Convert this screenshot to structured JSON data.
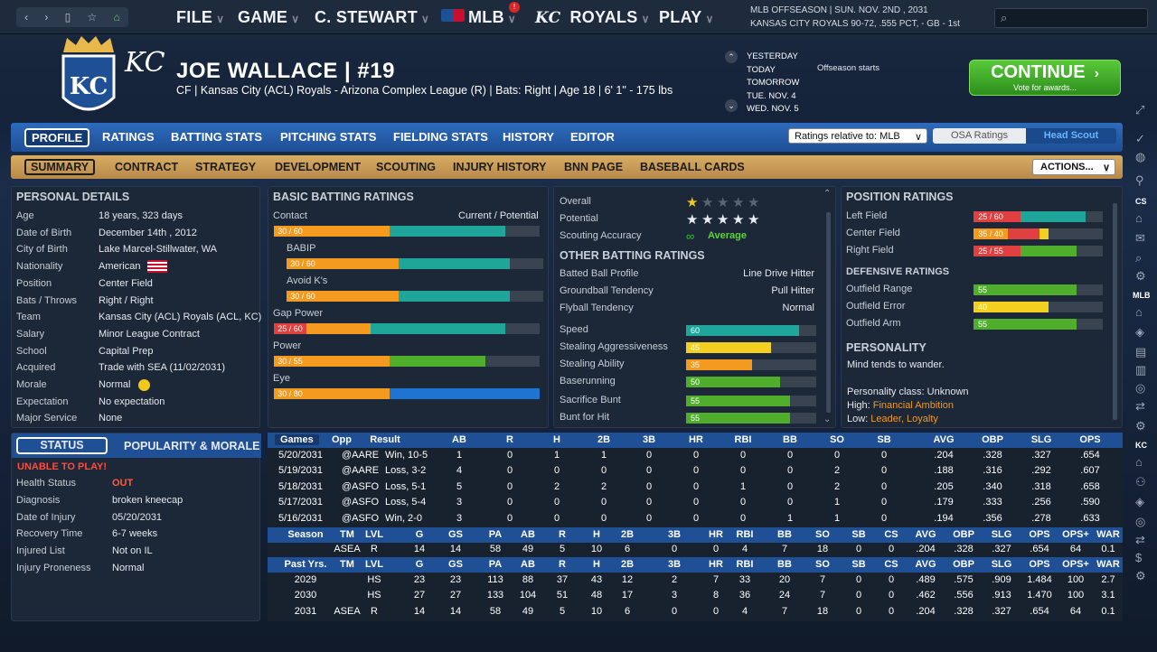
{
  "topbar": {
    "menu": [
      "FILE",
      "GAME",
      "C. STEWART",
      "MLB",
      "ROYALS",
      "PLAY"
    ],
    "mlb_badge": "!",
    "date_line1": "MLB OFFSEASON  |  SUN. NOV. 2ND , 2031",
    "date_line2": "KANSAS CITY ROYALS   90-72, .555 PCT, - GB - 1st"
  },
  "player": {
    "name": "JOE WALLACE  |  #19",
    "line": "CF | Kansas City (ACL) Royals - Arizona Complex League (R)  |  Bats: Right  |  Age 18  |  6' 1\" - 175 lbs",
    "logo_text": "KC"
  },
  "calendar": {
    "days": [
      "YESTERDAY",
      "TODAY",
      "TOMORROW",
      "TUE. NOV. 4",
      "WED. NOV. 5"
    ],
    "event": "Offseason starts"
  },
  "continue": {
    "label": "CONTINUE",
    "sub": "Vote for awards..."
  },
  "tabs1": [
    "PROFILE",
    "RATINGS",
    "BATTING STATS",
    "PITCHING STATS",
    "FIELDING STATS",
    "HISTORY",
    "EDITOR"
  ],
  "ratings_select": "Ratings relative to: MLB",
  "osa": "OSA Ratings",
  "scout": "Head Scout",
  "tabs2": [
    "SUMMARY",
    "CONTRACT",
    "STRATEGY",
    "DEVELOPMENT",
    "SCOUTING",
    "INJURY HISTORY",
    "BNN PAGE",
    "BASEBALL CARDS"
  ],
  "actions": "ACTIONS...",
  "personal": {
    "title": "PERSONAL DETAILS",
    "rows": [
      [
        "Age",
        "18 years, 323 days"
      ],
      [
        "Date of Birth",
        "December 14th , 2012"
      ],
      [
        "City of Birth",
        "Lake Marcel-Stillwater, WA"
      ],
      [
        "Nationality",
        "American"
      ],
      [
        "Position",
        "Center Field"
      ],
      [
        "Bats / Throws",
        "Right / Right"
      ],
      [
        "Team",
        "Kansas City (ACL) Royals (ACL, KC)"
      ],
      [
        "Salary",
        "Minor League Contract"
      ],
      [
        "School",
        "Capital Prep"
      ],
      [
        "Acquired",
        "Trade with SEA (11/02/2031)"
      ],
      [
        "Morale",
        "Normal"
      ],
      [
        "Expectation",
        "No expectation"
      ],
      [
        "Major Service",
        "None"
      ]
    ]
  },
  "status": {
    "tab1": "STATUS",
    "tab2": "POPULARITY & MORALE",
    "warning": "UNABLE TO PLAY!",
    "rows": [
      [
        "Health Status",
        "OUT"
      ],
      [
        "Diagnosis",
        "broken kneecap"
      ],
      [
        "Date of Injury",
        "05/20/2031"
      ],
      [
        "Recovery Time",
        "6-7 weeks"
      ],
      [
        "Injured List",
        "Not on IL"
      ],
      [
        "Injury Proneness",
        "Normal"
      ]
    ]
  },
  "batting": {
    "title": "BASIC BATTING RATINGS",
    "cur_pot": "Current / Potential",
    "items": [
      {
        "label": "Contact",
        "text": "30 / 60",
        "cur": 30,
        "pot": 60,
        "color": "#1fa59a"
      },
      {
        "label": "BABIP",
        "text": "30 / 60",
        "cur": 30,
        "pot": 60,
        "color": "#1fa59a"
      },
      {
        "label": "Avoid K's",
        "text": "30 / 60",
        "cur": 30,
        "pot": 60,
        "color": "#1fa59a"
      },
      {
        "label": "Gap Power",
        "text": "25 / 60",
        "cur": 25,
        "pot": 60,
        "color": "#1fa59a"
      },
      {
        "label": "Power",
        "text": "30 / 55",
        "cur": 30,
        "pot": 55,
        "color": "#4fae2b"
      },
      {
        "label": "Eye",
        "text": "30 / 80",
        "cur": 30,
        "pot": 80,
        "color": "#1e74d0"
      }
    ]
  },
  "summary": {
    "rows": [
      [
        "Overall",
        ""
      ],
      [
        "Potential",
        ""
      ],
      [
        "Scouting Accuracy",
        "Average"
      ]
    ],
    "overall_stars": 0.5,
    "potential_stars": 4.5,
    "other_title": "OTHER BATTING RATINGS",
    "other": [
      [
        "Batted Ball Profile",
        "Line Drive Hitter"
      ],
      [
        "Groundball Tendency",
        "Pull Hitter"
      ],
      [
        "Flyball Tendency",
        "Normal"
      ]
    ],
    "speed": [
      {
        "label": "Speed",
        "val": 60,
        "color": "#1fa59a"
      },
      {
        "label": "Stealing Aggressiveness",
        "val": 45,
        "color": "#f3d01f"
      },
      {
        "label": "Stealing Ability",
        "val": 35,
        "color": "#f39a1f"
      },
      {
        "label": "Baserunning",
        "val": 50,
        "color": "#4fae2b"
      },
      {
        "label": "Sacrifice Bunt",
        "val": 55,
        "color": "#4fae2b"
      },
      {
        "label": "Bunt for Hit",
        "val": 55,
        "color": "#4fae2b"
      }
    ]
  },
  "position": {
    "title": "POSITION RATINGS",
    "items": [
      {
        "label": "Left Field",
        "text": "25 / 60",
        "cur": 25,
        "pot": 60,
        "color": "#1fa59a",
        "badge": "#e04040"
      },
      {
        "label": "Center Field",
        "text": "35 / 40",
        "cur": 35,
        "pot": 40,
        "color": "#f3d01f",
        "badge": "#f39a1f"
      },
      {
        "label": "Right Field",
        "text": "25 / 55",
        "cur": 25,
        "pot": 55,
        "color": "#4fae2b",
        "badge": "#e04040"
      }
    ],
    "def_title": "DEFENSIVE RATINGS",
    "def": [
      {
        "label": "Outfield Range",
        "val": 55,
        "color": "#4fae2b"
      },
      {
        "label": "Outfield Error",
        "val": 40,
        "color": "#f3d01f"
      },
      {
        "label": "Outfield Arm",
        "val": 55,
        "color": "#4fae2b"
      }
    ],
    "pers_title": "PERSONALITY",
    "pers_text": "Mind tends to wander.",
    "pers_class": "Personality class: Unknown",
    "high_label": "High:",
    "high": "Financial Ambition",
    "low_label": "Low:",
    "low": "Leader, Loyalty"
  },
  "games": {
    "headers": [
      "Games",
      "Opp",
      "Result",
      "AB",
      "R",
      "H",
      "2B",
      "3B",
      "HR",
      "RBI",
      "BB",
      "SO",
      "SB",
      "AVG",
      "OBP",
      "SLG",
      "OPS"
    ],
    "rows": [
      [
        "5/20/2031",
        "@AARE",
        "Win, 10-5",
        "1",
        "0",
        "1",
        "1",
        "0",
        "0",
        "0",
        "0",
        "0",
        "0",
        ".204",
        ".328",
        ".327",
        ".654"
      ],
      [
        "5/19/2031",
        "@AARE",
        "Loss, 3-2",
        "4",
        "0",
        "0",
        "0",
        "0",
        "0",
        "0",
        "0",
        "2",
        "0",
        ".188",
        ".316",
        ".292",
        ".607"
      ],
      [
        "5/18/2031",
        "@ASFO",
        "Loss, 5-1",
        "5",
        "0",
        "2",
        "2",
        "0",
        "0",
        "1",
        "0",
        "2",
        "0",
        ".205",
        ".340",
        ".318",
        ".658"
      ],
      [
        "5/17/2031",
        "@ASFO",
        "Loss, 5-4",
        "3",
        "0",
        "0",
        "0",
        "0",
        "0",
        "0",
        "0",
        "1",
        "0",
        ".179",
        ".333",
        ".256",
        ".590"
      ],
      [
        "5/16/2031",
        "@ASFO",
        "Win, 2-0",
        "3",
        "0",
        "0",
        "0",
        "0",
        "0",
        "0",
        "1",
        "1",
        "0",
        ".194",
        ".356",
        ".278",
        ".633"
      ]
    ]
  },
  "season": {
    "headers": [
      "Season",
      "TM",
      "LVL",
      "G",
      "GS",
      "PA",
      "AB",
      "R",
      "H",
      "2B",
      "3B",
      "HR",
      "RBI",
      "BB",
      "SO",
      "SB",
      "CS",
      "AVG",
      "OBP",
      "SLG",
      "OPS",
      "OPS+",
      "WAR"
    ],
    "rows": [
      [
        "",
        "ASEA",
        "R",
        "14",
        "14",
        "58",
        "49",
        "5",
        "10",
        "6",
        "0",
        "0",
        "4",
        "7",
        "18",
        "0",
        "0",
        ".204",
        ".328",
        ".327",
        ".654",
        "64",
        "0.1"
      ]
    ]
  },
  "past": {
    "headers": [
      "Past Yrs.",
      "TM",
      "LVL",
      "G",
      "GS",
      "PA",
      "AB",
      "R",
      "H",
      "2B",
      "3B",
      "HR",
      "RBI",
      "BB",
      "SO",
      "SB",
      "CS",
      "AVG",
      "OBP",
      "SLG",
      "OPS",
      "OPS+",
      "WAR"
    ],
    "rows": [
      [
        "2029",
        "",
        "HS",
        "23",
        "23",
        "113",
        "88",
        "37",
        "43",
        "12",
        "2",
        "7",
        "33",
        "20",
        "7",
        "0",
        "0",
        ".489",
        ".575",
        ".909",
        "1.484",
        "100",
        "2.7"
      ],
      [
        "2030",
        "",
        "HS",
        "27",
        "27",
        "133",
        "104",
        "51",
        "48",
        "17",
        "3",
        "8",
        "36",
        "24",
        "7",
        "0",
        "0",
        ".462",
        ".556",
        ".913",
        "1.470",
        "100",
        "3.1"
      ],
      [
        "2031",
        "ASEA",
        "R",
        "14",
        "14",
        "58",
        "49",
        "5",
        "10",
        "6",
        "0",
        "0",
        "4",
        "7",
        "18",
        "0",
        "0",
        ".204",
        ".328",
        ".327",
        ".654",
        "64",
        "0.1"
      ]
    ]
  },
  "rail": {
    "cs": "CS",
    "mlb": "MLB",
    "kc": "KC"
  }
}
